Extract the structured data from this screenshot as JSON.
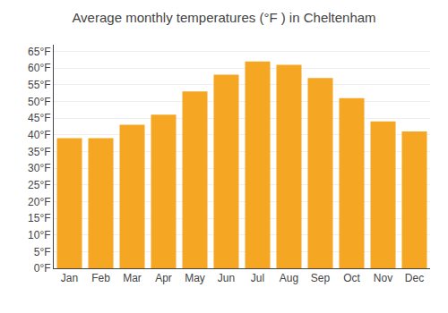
{
  "chart_data": {
    "type": "bar",
    "title": "Average monthly temperatures (°F ) in Cheltenham",
    "categories": [
      "Jan",
      "Feb",
      "Mar",
      "Apr",
      "May",
      "Jun",
      "Jul",
      "Aug",
      "Sep",
      "Oct",
      "Nov",
      "Dec"
    ],
    "values": [
      39,
      39,
      43,
      46,
      53,
      58,
      62,
      61,
      57,
      51,
      44,
      41
    ],
    "color": "#F5A623",
    "ylim": [
      0,
      67
    ],
    "yticks": [
      {
        "value": 0,
        "label": "0°F"
      },
      {
        "value": 5,
        "label": "5°F"
      },
      {
        "value": 10,
        "label": "10°F"
      },
      {
        "value": 15,
        "label": "15°F"
      },
      {
        "value": 20,
        "label": "20°F"
      },
      {
        "value": 25,
        "label": "25°F"
      },
      {
        "value": 30,
        "label": "30°F"
      },
      {
        "value": 35,
        "label": "35°F"
      },
      {
        "value": 40,
        "label": "40°F"
      },
      {
        "value": 45,
        "label": "45°F"
      },
      {
        "value": 50,
        "label": "50°F"
      },
      {
        "value": 55,
        "label": "55°F"
      },
      {
        "value": 60,
        "label": "60°F"
      },
      {
        "value": 65,
        "label": "65°F"
      }
    ],
    "grid": true
  }
}
